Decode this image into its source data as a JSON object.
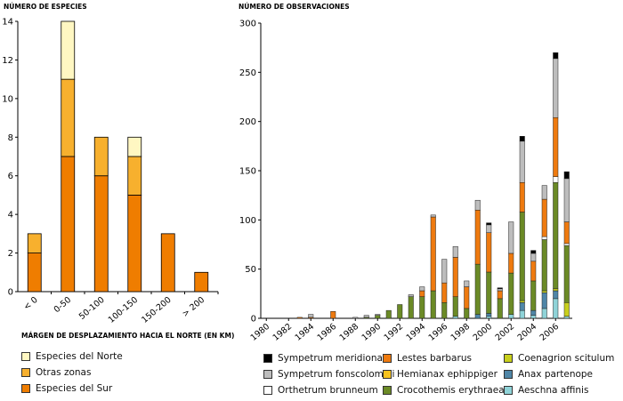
{
  "colors": {
    "sur": "#ef7d00",
    "otras": "#f7b02e",
    "norte": "#fff7c2",
    "meridionale": "#000000",
    "fonscolombii": "#bdbdbd",
    "brunneum": "#ffffff",
    "barbarus": "#ee7a0f",
    "ephippiger": "#f7c31f",
    "erythraea": "#6b8a26",
    "scitulum": "#c8cf1c",
    "partenope": "#4f86a7",
    "affinis": "#8fd3d8"
  },
  "chart_data": [
    {
      "type": "bar",
      "title": "",
      "ylabel": "NÚMERO DE ESPECIES",
      "xlabel": "MÁRGEN DE DESPLAZAMIENTO HACIA EL NORTE (EN KM)",
      "categories": [
        "< 0",
        "0-50",
        "50-100",
        "100-150",
        "150-200",
        "> 200"
      ],
      "ylim": [
        0,
        14
      ],
      "yticks": [
        "0",
        "2",
        "4",
        "6",
        "8",
        "10",
        "12",
        "14"
      ],
      "stacked": true,
      "series": [
        {
          "name": "Especies del Sur",
          "key": "sur",
          "values": [
            2,
            7,
            6,
            5,
            3,
            1
          ]
        },
        {
          "name": "Otras zonas",
          "key": "otras",
          "values": [
            1,
            4,
            2,
            2,
            0,
            0
          ]
        },
        {
          "name": "Especies del Norte",
          "key": "norte",
          "values": [
            0,
            3,
            0,
            1,
            0,
            0
          ]
        }
      ],
      "legend": {
        "placement": "bottom-left",
        "entries": [
          {
            "label": "Especies del Norte",
            "key": "norte"
          },
          {
            "label": "Otras zonas",
            "key": "otras"
          },
          {
            "label": "Especies del Sur",
            "key": "sur"
          }
        ]
      }
    },
    {
      "type": "bar",
      "title": "",
      "ylabel": "NÚMERO DE OBSERVACIONES",
      "xlabel": "",
      "ylim": [
        0,
        300
      ],
      "yticks": [
        "0",
        "50",
        "100",
        "150",
        "200",
        "250",
        "300"
      ],
      "xticks": [
        "1980",
        "1982",
        "1984",
        "1986",
        "1988",
        "1990",
        "1992",
        "1994",
        "1996",
        "1998",
        "2000",
        "2002",
        "2004",
        "2006"
      ],
      "stacked": true,
      "years": [
        1980,
        1981,
        1982,
        1983,
        1984,
        1985,
        1986,
        1987,
        1988,
        1989,
        1990,
        1991,
        1992,
        1993,
        1994,
        1995,
        1996,
        1997,
        1998,
        1999,
        2000,
        2001,
        2002,
        2003,
        2004,
        2005,
        2006,
        2007
      ],
      "series": [
        {
          "name": "Aeschna affinis",
          "key": "affinis",
          "values": [
            0,
            0,
            0,
            0,
            0,
            0,
            0,
            0,
            0,
            0,
            0,
            0,
            0,
            0,
            0,
            0,
            0,
            2,
            0,
            0,
            2,
            0,
            4,
            8,
            3,
            10,
            20,
            2
          ]
        },
        {
          "name": "Anax partenope",
          "key": "partenope",
          "values": [
            0,
            0,
            0,
            0,
            0,
            0,
            0,
            0,
            0,
            0,
            0,
            0,
            0,
            0,
            0,
            0,
            0,
            0,
            0,
            4,
            3,
            0,
            0,
            8,
            5,
            16,
            8,
            0
          ]
        },
        {
          "name": "Coenagrion scitulum",
          "key": "scitulum",
          "values": [
            0,
            0,
            0,
            0,
            0,
            0,
            0,
            0,
            0,
            0,
            0,
            0,
            0,
            0,
            0,
            0,
            0,
            0,
            0,
            0,
            0,
            0,
            0,
            2,
            0,
            2,
            2,
            14
          ]
        },
        {
          "name": "Crocothemis erythraea",
          "key": "erythraea",
          "values": [
            0,
            0,
            0,
            0,
            0,
            0,
            0,
            0,
            0,
            1,
            3,
            8,
            14,
            22,
            22,
            28,
            16,
            20,
            10,
            51,
            42,
            20,
            42,
            90,
            30,
            52,
            108,
            58
          ]
        },
        {
          "name": "Hemianax ephippiger",
          "key": "ephippiger",
          "values": [
            0,
            0,
            0,
            0,
            0,
            0,
            0,
            0,
            0,
            0,
            0,
            0,
            0,
            0,
            0,
            0,
            0,
            0,
            0,
            0,
            0,
            0,
            0,
            0,
            0,
            0,
            0,
            0
          ]
        },
        {
          "name": "Orthetrum brunneum",
          "key": "brunneum",
          "values": [
            0,
            0,
            0,
            0,
            0,
            0,
            0,
            0,
            0,
            0,
            0,
            0,
            0,
            0,
            0,
            0,
            0,
            0,
            0,
            0,
            0,
            0,
            0,
            0,
            0,
            3,
            6,
            2
          ]
        },
        {
          "name": "Lestes barbarus",
          "key": "barbarus",
          "values": [
            0,
            0,
            0,
            1,
            1,
            0,
            7,
            0,
            0,
            0,
            0,
            0,
            0,
            0,
            6,
            75,
            20,
            40,
            22,
            55,
            40,
            8,
            20,
            30,
            20,
            38,
            60,
            22
          ]
        },
        {
          "name": "Sympetrum fonscolombii",
          "key": "fonscolombii",
          "values": [
            0,
            0,
            0,
            0,
            3,
            0,
            0,
            0,
            1,
            2,
            1,
            0,
            0,
            2,
            4,
            2,
            24,
            11,
            6,
            10,
            8,
            2,
            32,
            42,
            8,
            14,
            60,
            44
          ]
        },
        {
          "name": "Sympetrum meridionale",
          "key": "meridionale",
          "values": [
            0,
            0,
            0,
            0,
            0,
            0,
            0,
            0,
            0,
            0,
            0,
            0,
            0,
            0,
            0,
            0,
            0,
            0,
            0,
            0,
            2,
            1,
            0,
            5,
            3,
            0,
            6,
            7
          ]
        }
      ],
      "legend": {
        "placement": "bottom",
        "entries": [
          {
            "label": "Sympetrum meridionale",
            "key": "meridionale"
          },
          {
            "label": "Sympetrum fonscolombii",
            "key": "fonscolombii"
          },
          {
            "label": "Orthetrum brunneum",
            "key": "brunneum"
          },
          {
            "label": "Lestes barbarus",
            "key": "barbarus"
          },
          {
            "label": "Hemianax ephippiger",
            "key": "ephippiger"
          },
          {
            "label": "Crocothemis erythraea",
            "key": "erythraea"
          },
          {
            "label": "Coenagrion scitulum",
            "key": "scitulum"
          },
          {
            "label": "Anax partenope",
            "key": "partenope"
          },
          {
            "label": "Aeschna affinis",
            "key": "affinis"
          }
        ]
      }
    }
  ]
}
